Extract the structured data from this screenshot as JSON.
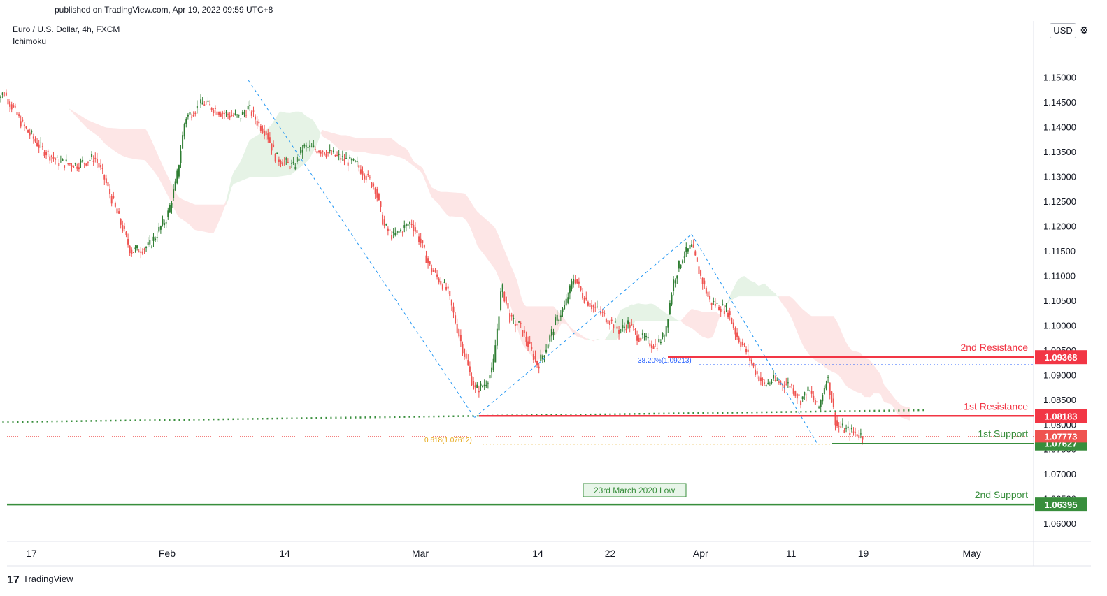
{
  "header": {
    "published": "published on TradingView.com, Apr 19, 2022 09:59 UTC+8",
    "symbol": "Euro / U.S. Dollar, 4h, FXCM",
    "indicator": "Ichimoku",
    "currency": "USD",
    "settings_icon": "gear-icon"
  },
  "footer": {
    "logo_icon": "tradingview-logo-icon",
    "brand": "TradingView"
  },
  "colors": {
    "up": "#26a69a",
    "up_body": "#2e7d32",
    "down": "#ef5350",
    "resistance": "#f23645",
    "support": "#388e3c",
    "fib_blue": "#2962ff",
    "fib_gold": "#e6a817",
    "cloud_green": "#e6f3e6",
    "cloud_red": "#fde6e6",
    "dashed_blue": "#2196f3"
  },
  "chart_data": {
    "type": "candlestick",
    "title": "Euro / U.S. Dollar, 4h, FXCM",
    "ylim": [
      1.0565,
      1.1615
    ],
    "xlabel": "",
    "ylabel": "",
    "y_ticks": [
      "1.06000",
      "1.06500",
      "1.07000",
      "1.07500",
      "1.08000",
      "1.08500",
      "1.09000",
      "1.09500",
      "1.10000",
      "1.10500",
      "1.11000",
      "1.11500",
      "1.12000",
      "1.12500",
      "1.13000",
      "1.13500",
      "1.14000",
      "1.14500",
      "1.15000"
    ],
    "x_ticks": [
      {
        "label": "17",
        "date": "2022-01-17"
      },
      {
        "label": "Feb",
        "date": "2022-02-01"
      },
      {
        "label": "14",
        "date": "2022-02-14"
      },
      {
        "label": "Mar",
        "date": "2022-03-01"
      },
      {
        "label": "14",
        "date": "2022-03-14"
      },
      {
        "label": "22",
        "date": "2022-03-22"
      },
      {
        "label": "Apr",
        "date": "2022-04-01"
      },
      {
        "label": "11",
        "date": "2022-04-11"
      },
      {
        "label": "19",
        "date": "2022-04-19"
      },
      {
        "label": "May",
        "date": "2022-05-01"
      }
    ],
    "price_path": [
      [
        "2022-01-13",
        1.1455
      ],
      [
        "2022-01-14",
        1.147
      ],
      [
        "2022-01-16",
        1.1405
      ],
      [
        "2022-01-18",
        1.136
      ],
      [
        "2022-01-20",
        1.133
      ],
      [
        "2022-01-22",
        1.1325
      ],
      [
        "2022-01-24",
        1.134
      ],
      [
        "2022-01-25",
        1.13
      ],
      [
        "2022-01-27",
        1.12
      ],
      [
        "2022-01-28",
        1.115
      ],
      [
        "2022-01-30",
        1.116
      ],
      [
        "2022-02-01",
        1.122
      ],
      [
        "2022-02-02",
        1.129
      ],
      [
        "2022-02-03",
        1.142
      ],
      [
        "2022-02-05",
        1.145
      ],
      [
        "2022-02-07",
        1.143
      ],
      [
        "2022-02-09",
        1.142
      ],
      [
        "2022-02-10",
        1.144
      ],
      [
        "2022-02-11",
        1.141
      ],
      [
        "2022-02-12",
        1.139
      ],
      [
        "2022-02-13",
        1.134
      ],
      [
        "2022-02-15",
        1.132
      ],
      [
        "2022-02-16",
        1.136
      ],
      [
        "2022-02-18",
        1.1355
      ],
      [
        "2022-02-20",
        1.134
      ],
      [
        "2022-02-22",
        1.1325
      ],
      [
        "2022-02-24",
        1.128
      ],
      [
        "2022-02-25",
        1.12
      ],
      [
        "2022-02-26",
        1.118
      ],
      [
        "2022-02-28",
        1.121
      ],
      [
        "2022-03-01",
        1.117
      ],
      [
        "2022-03-02",
        1.112
      ],
      [
        "2022-03-04",
        1.107
      ],
      [
        "2022-03-05",
        1.1
      ],
      [
        "2022-03-07",
        1.087
      ],
      [
        "2022-03-08",
        1.088
      ],
      [
        "2022-03-09",
        1.091
      ],
      [
        "2022-03-10",
        1.108
      ],
      [
        "2022-03-11",
        1.101
      ],
      [
        "2022-03-12",
        1.1
      ],
      [
        "2022-03-14",
        1.092
      ],
      [
        "2022-03-15",
        1.096
      ],
      [
        "2022-03-16",
        1.101
      ],
      [
        "2022-03-17",
        1.104
      ],
      [
        "2022-03-18",
        1.11
      ],
      [
        "2022-03-19",
        1.106
      ],
      [
        "2022-03-20",
        1.104
      ],
      [
        "2022-03-22",
        1.101
      ],
      [
        "2022-03-23",
        1.099
      ],
      [
        "2022-03-24",
        1.1005
      ],
      [
        "2022-03-25",
        1.098
      ],
      [
        "2022-03-26",
        1.097
      ],
      [
        "2022-03-27",
        1.096
      ],
      [
        "2022-03-28",
        1.098
      ],
      [
        "2022-03-29",
        1.109
      ],
      [
        "2022-03-30",
        1.114
      ],
      [
        "2022-03-31",
        1.116
      ],
      [
        "2022-04-01",
        1.11
      ],
      [
        "2022-04-02",
        1.105
      ],
      [
        "2022-04-04",
        1.103
      ],
      [
        "2022-04-05",
        1.098
      ],
      [
        "2022-04-06",
        1.095
      ],
      [
        "2022-04-07",
        1.091
      ],
      [
        "2022-04-08",
        1.088
      ],
      [
        "2022-04-09",
        1.089
      ],
      [
        "2022-04-11",
        1.088
      ],
      [
        "2022-04-12",
        1.085
      ],
      [
        "2022-04-13",
        1.087
      ],
      [
        "2022-04-14",
        1.083
      ],
      [
        "2022-04-15",
        1.09
      ],
      [
        "2022-04-16",
        1.08
      ],
      [
        "2022-04-17",
        1.079
      ],
      [
        "2022-04-18",
        1.0785
      ],
      [
        "2022-04-19",
        1.0777
      ]
    ],
    "current_price": 1.07773,
    "levels": [
      {
        "name": "2nd Resistance",
        "price": 1.09368,
        "label": "1.09368",
        "kind": "resistance"
      },
      {
        "name": "1st Resistance",
        "price": 1.08183,
        "label": "1.08183",
        "kind": "resistance"
      },
      {
        "name": "1st Support",
        "price": 1.07627,
        "label": "1.07627",
        "kind": "support"
      },
      {
        "name": "2nd Support",
        "price": 1.06395,
        "label": "1.06395",
        "kind": "support"
      }
    ],
    "current_price_label": "1.07773",
    "fib_annotations": [
      {
        "label": "38.20%(1.09213)",
        "price": 1.09213
      },
      {
        "label": "0.618(1.07612)",
        "price": 1.07612
      }
    ],
    "annotation": "23rd March 2020 Low",
    "zigzag": [
      [
        "2022-02-10",
        1.1495
      ],
      [
        "2022-03-07",
        1.0815
      ],
      [
        "2022-03-31",
        1.1185
      ],
      [
        "2022-04-14",
        1.076
      ]
    ],
    "long_trendline": [
      [
        "2022-01-10",
        1.0805
      ],
      [
        "2022-04-26",
        1.083
      ]
    ],
    "grid": false,
    "legend": "top-left"
  }
}
